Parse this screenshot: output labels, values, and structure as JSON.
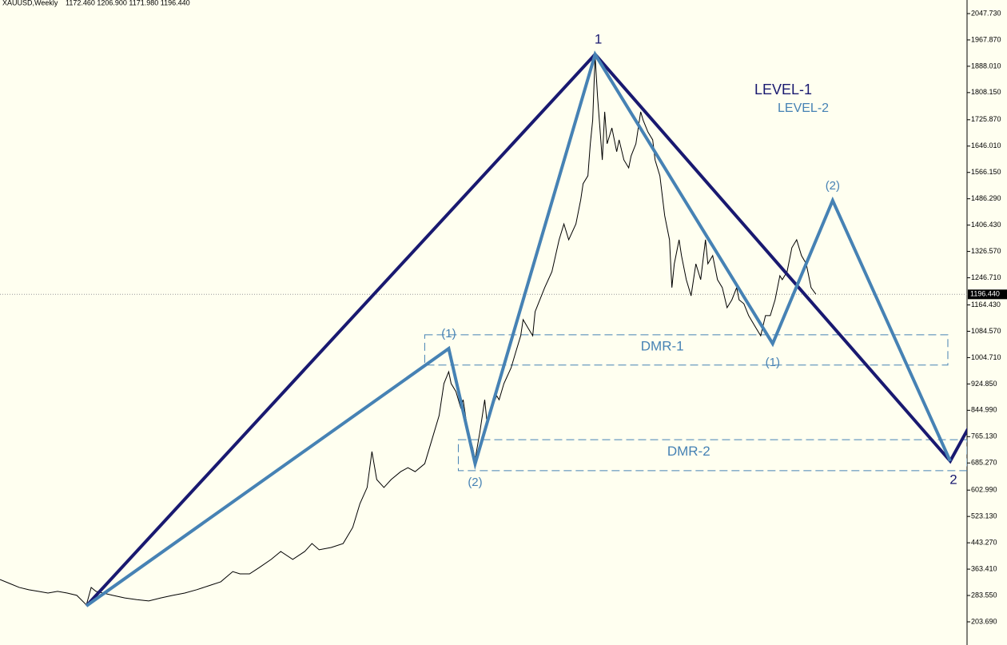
{
  "chart_data": {
    "type": "line",
    "title": "XAUUSD,Weekly",
    "subtitle": "1172.460 1206.900 1171.980 1196.440",
    "xlim": [
      0,
      403
    ],
    "ylim": [
      133.4,
      2088.9
    ],
    "yticks": [
      {
        "value": 2047.73,
        "label": "2047.730"
      },
      {
        "value": 1967.87,
        "label": "1967.870"
      },
      {
        "value": 1888.01,
        "label": "1888.010"
      },
      {
        "value": 1808.15,
        "label": "1808.150"
      },
      {
        "value": 1725.87,
        "label": "1725.870"
      },
      {
        "value": 1646.01,
        "label": "1646.010"
      },
      {
        "value": 1566.15,
        "label": "1566.150"
      },
      {
        "value": 1486.29,
        "label": "1486.290"
      },
      {
        "value": 1406.43,
        "label": "1406.430"
      },
      {
        "value": 1326.57,
        "label": "1326.570"
      },
      {
        "value": 1246.71,
        "label": "1246.710"
      },
      {
        "value": 1164.43,
        "label": "1164.430"
      },
      {
        "value": 1084.57,
        "label": "1084.570"
      },
      {
        "value": 1004.71,
        "label": "1004.710"
      },
      {
        "value": 924.85,
        "label": "924.850"
      },
      {
        "value": 844.99,
        "label": "844.990"
      },
      {
        "value": 765.13,
        "label": "765.130"
      },
      {
        "value": 685.27,
        "label": "685.270"
      },
      {
        "value": 602.99,
        "label": "602.990"
      },
      {
        "value": 523.13,
        "label": "523.130"
      },
      {
        "value": 443.27,
        "label": "443.270"
      },
      {
        "value": 363.41,
        "label": "363.410"
      },
      {
        "value": 283.55,
        "label": "283.550"
      },
      {
        "value": 203.69,
        "label": "203.690"
      }
    ],
    "grid": false,
    "last_price": {
      "value": 1196.44,
      "label": "1196.440"
    },
    "series": [
      {
        "color": "#000000",
        "width": 1,
        "x": [
          0,
          4,
          8,
          12,
          16,
          20,
          24,
          28,
          32,
          36,
          38,
          40,
          43,
          47,
          52,
          57,
          62,
          67,
          72,
          77,
          82,
          87,
          92,
          97,
          100,
          104,
          108,
          113,
          117,
          122,
          127,
          130,
          133,
          138,
          143,
          147,
          150,
          153,
          155,
          157,
          160,
          163,
          167,
          170,
          173,
          177,
          180,
          183,
          185,
          187,
          188,
          190,
          192,
          193,
          195,
          197,
          198,
          200,
          202,
          203,
          205,
          207,
          208,
          210,
          213,
          215,
          217,
          218,
          220,
          222,
          223,
          227,
          230,
          233,
          235,
          237,
          240,
          242,
          243,
          245,
          246,
          247,
          248,
          249,
          250,
          251,
          252,
          253,
          255,
          257,
          258,
          260,
          262,
          263,
          265,
          267,
          268,
          270,
          272,
          273,
          275,
          277,
          279,
          280,
          281,
          283,
          284,
          286,
          288,
          290,
          292,
          294,
          295,
          297,
          299,
          301,
          303,
          305,
          307,
          308,
          310,
          312,
          315,
          317,
          319,
          321,
          323,
          325,
          326,
          328,
          330,
          332,
          334,
          336,
          338,
          340
        ],
        "values": [
          332,
          320,
          308,
          301,
          296,
          291,
          296,
          291,
          284,
          255,
          308,
          296,
          291,
          284,
          276,
          271,
          267,
          276,
          284,
          291,
          301,
          313,
          325,
          356,
          349,
          349,
          368,
          393,
          417,
          393,
          417,
          441,
          422,
          429,
          441,
          490,
          562,
          611,
          720,
          635,
          611,
          635,
          659,
          671,
          659,
          683,
          756,
          829,
          926,
          962,
          926,
          902,
          853,
          877,
          780,
          732,
          696,
          780,
          877,
          805,
          853,
          889,
          877,
          926,
          974,
          1023,
          1071,
          1120,
          1095,
          1071,
          1144,
          1217,
          1265,
          1362,
          1410,
          1362,
          1410,
          1483,
          1532,
          1556,
          1653,
          1725,
          1920,
          1798,
          1701,
          1604,
          1750,
          1653,
          1701,
          1629,
          1665,
          1604,
          1580,
          1616,
          1653,
          1750,
          1725,
          1689,
          1665,
          1604,
          1556,
          1435,
          1362,
          1217,
          1289,
          1362,
          1314,
          1241,
          1192,
          1289,
          1241,
          1362,
          1289,
          1314,
          1241,
          1217,
          1156,
          1180,
          1217,
          1180,
          1168,
          1132,
          1095,
          1071,
          1132,
          1132,
          1180,
          1253,
          1241,
          1265,
          1338,
          1362,
          1314,
          1289,
          1217,
          1197
        ]
      },
      {
        "name": "LEVEL-1",
        "color": "#191970",
        "width": 4,
        "x": [
          36,
          248,
          396,
          404
        ],
        "values": [
          252,
          1924,
          691,
          797
        ],
        "point_labels": [
          null,
          "1",
          "2",
          null
        ]
      },
      {
        "name": "LEVEL-2",
        "color": "#4682b4",
        "width": 4,
        "x": [
          36,
          187,
          198,
          248,
          322,
          347,
          396
        ],
        "values": [
          252,
          1032,
          683,
          1924,
          1047,
          1481,
          691
        ],
        "point_labels": [
          null,
          "(1)",
          "(2)",
          null,
          "(1)",
          "(2)",
          null
        ]
      }
    ],
    "zones": [
      {
        "label": "DMR-1",
        "x": [
          177,
          395
        ],
        "range": [
          982,
          1074
        ],
        "color": "#4682b4"
      },
      {
        "label": "DMR-2",
        "x": [
          191,
          403
        ],
        "range": [
          662,
          756
        ],
        "color": "#4682b4"
      }
    ]
  }
}
